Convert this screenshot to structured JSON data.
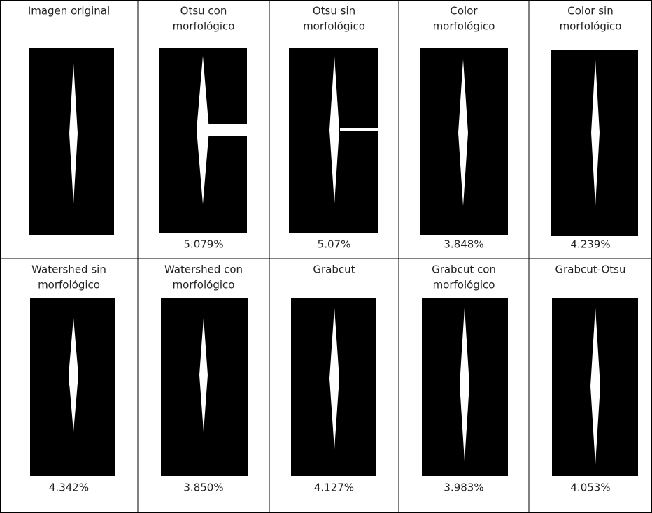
{
  "table": {
    "rows": [
      [
        {
          "title": [
            "Imagen original"
          ]
        },
        {
          "title": [
            "Otsu con",
            "morfológico"
          ],
          "result": "5.079%"
        },
        {
          "title": [
            "Otsu sin",
            "morfológico"
          ],
          "result": "5.07%"
        },
        {
          "title": [
            "Color",
            "morfológico"
          ],
          "result": "3.848%"
        },
        {
          "title": [
            "Color sin",
            "morfológico"
          ],
          "result": "4.239%"
        }
      ],
      [
        {
          "title": [
            "Watershed sin",
            "morfológico"
          ],
          "result": "4.342%"
        },
        {
          "title": [
            "Watershed con",
            "morfológico"
          ],
          "result": "3.850%"
        },
        {
          "title": [
            "Grabcut"
          ],
          "result": "4.127%"
        },
        {
          "title": [
            "Grabcut con",
            "morfológico"
          ],
          "result": "3.983%"
        },
        {
          "title": [
            "Grabcut-Otsu"
          ],
          "result": "4.053%"
        }
      ]
    ]
  }
}
